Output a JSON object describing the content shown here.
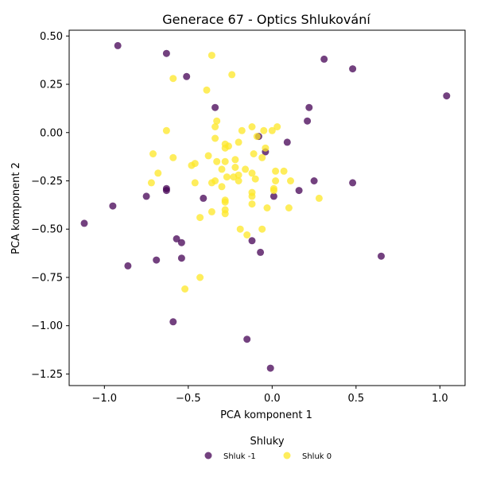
{
  "chart_data": {
    "type": "scatter",
    "title": "Generace 67 - Optics Shlukování",
    "xlabel": "PCA komponent 1",
    "ylabel": "PCA komponent 2",
    "xlim": [
      -1.21,
      1.15
    ],
    "ylim": [
      -1.31,
      0.53
    ],
    "x_ticks": [
      -1.0,
      -0.5,
      0.0,
      0.5,
      1.0
    ],
    "x_tick_labels": [
      "−1.0",
      "−0.5",
      "0.0",
      "0.5",
      "1.0"
    ],
    "y_ticks": [
      -1.25,
      -1.0,
      -0.75,
      -0.5,
      -0.25,
      0.0,
      0.25,
      0.5
    ],
    "y_tick_labels": [
      "−1.25",
      "−1.00",
      "−0.75",
      "−0.50",
      "−0.25",
      "0.00",
      "0.25",
      "0.50"
    ],
    "grid": false,
    "legend": {
      "title": "Shluky",
      "placement": "bottom-center"
    },
    "series": [
      {
        "name": "Shluk -1",
        "color": "#440154",
        "points": [
          [
            -0.92,
            0.45
          ],
          [
            -0.63,
            0.41
          ],
          [
            -0.51,
            0.29
          ],
          [
            0.31,
            0.38
          ],
          [
            0.48,
            0.33
          ],
          [
            -0.34,
            0.13
          ],
          [
            1.04,
            0.19
          ],
          [
            0.22,
            0.13
          ],
          [
            0.21,
            0.06
          ],
          [
            -0.08,
            -0.02
          ],
          [
            0.09,
            -0.05
          ],
          [
            -0.04,
            -0.1
          ],
          [
            0.25,
            -0.25
          ],
          [
            0.48,
            -0.26
          ],
          [
            -0.63,
            -0.29
          ],
          [
            -0.63,
            -0.3
          ],
          [
            0.16,
            -0.3
          ],
          [
            -0.75,
            -0.33
          ],
          [
            0.01,
            -0.33
          ],
          [
            -0.41,
            -0.34
          ],
          [
            -0.95,
            -0.38
          ],
          [
            -1.12,
            -0.47
          ],
          [
            -0.57,
            -0.55
          ],
          [
            -0.54,
            -0.57
          ],
          [
            -0.12,
            -0.56
          ],
          [
            -0.07,
            -0.62
          ],
          [
            -0.54,
            -0.65
          ],
          [
            -0.69,
            -0.66
          ],
          [
            0.65,
            -0.64
          ],
          [
            -0.86,
            -0.69
          ],
          [
            -0.59,
            -0.98
          ],
          [
            -0.15,
            -1.07
          ],
          [
            -0.01,
            -1.22
          ]
        ]
      },
      {
        "name": "Shluk 0",
        "color": "#fde725",
        "points": [
          [
            -0.36,
            0.4
          ],
          [
            -0.24,
            0.3
          ],
          [
            -0.59,
            0.28
          ],
          [
            -0.39,
            0.22
          ],
          [
            -0.33,
            0.06
          ],
          [
            -0.34,
            0.03
          ],
          [
            0.03,
            0.03
          ],
          [
            -0.12,
            0.03
          ],
          [
            -0.63,
            0.01
          ],
          [
            -0.18,
            0.01
          ],
          [
            -0.05,
            0.01
          ],
          [
            0.0,
            0.01
          ],
          [
            -0.09,
            -0.02
          ],
          [
            -0.34,
            -0.03
          ],
          [
            -0.2,
            -0.05
          ],
          [
            -0.28,
            -0.06
          ],
          [
            -0.26,
            -0.07
          ],
          [
            -0.28,
            -0.08
          ],
          [
            -0.04,
            -0.08
          ],
          [
            -0.71,
            -0.11
          ],
          [
            -0.38,
            -0.12
          ],
          [
            -0.11,
            -0.11
          ],
          [
            -0.06,
            -0.13
          ],
          [
            -0.59,
            -0.13
          ],
          [
            -0.22,
            -0.14
          ],
          [
            -0.33,
            -0.15
          ],
          [
            -0.28,
            -0.15
          ],
          [
            -0.46,
            -0.16
          ],
          [
            -0.48,
            -0.17
          ],
          [
            -0.22,
            -0.18
          ],
          [
            -0.3,
            -0.19
          ],
          [
            -0.16,
            -0.19
          ],
          [
            -0.68,
            -0.21
          ],
          [
            0.02,
            -0.2
          ],
          [
            0.07,
            -0.2
          ],
          [
            -0.12,
            -0.21
          ],
          [
            -0.2,
            -0.22
          ],
          [
            -0.27,
            -0.23
          ],
          [
            -0.23,
            -0.23
          ],
          [
            -0.1,
            -0.24
          ],
          [
            -0.2,
            -0.25
          ],
          [
            -0.34,
            -0.25
          ],
          [
            -0.46,
            -0.26
          ],
          [
            -0.36,
            -0.26
          ],
          [
            0.02,
            -0.25
          ],
          [
            0.11,
            -0.25
          ],
          [
            -0.72,
            -0.26
          ],
          [
            -0.3,
            -0.28
          ],
          [
            0.01,
            -0.29
          ],
          [
            0.01,
            -0.3
          ],
          [
            -0.12,
            -0.31
          ],
          [
            -0.12,
            -0.33
          ],
          [
            -0.28,
            -0.35
          ],
          [
            -0.28,
            -0.36
          ],
          [
            0.28,
            -0.34
          ],
          [
            -0.12,
            -0.37
          ],
          [
            -0.28,
            -0.4
          ],
          [
            -0.36,
            -0.41
          ],
          [
            -0.28,
            -0.42
          ],
          [
            -0.03,
            -0.39
          ],
          [
            0.1,
            -0.39
          ],
          [
            -0.43,
            -0.44
          ],
          [
            -0.19,
            -0.5
          ],
          [
            -0.06,
            -0.5
          ],
          [
            -0.15,
            -0.53
          ],
          [
            -0.43,
            -0.75
          ],
          [
            -0.52,
            -0.81
          ]
        ]
      }
    ]
  }
}
